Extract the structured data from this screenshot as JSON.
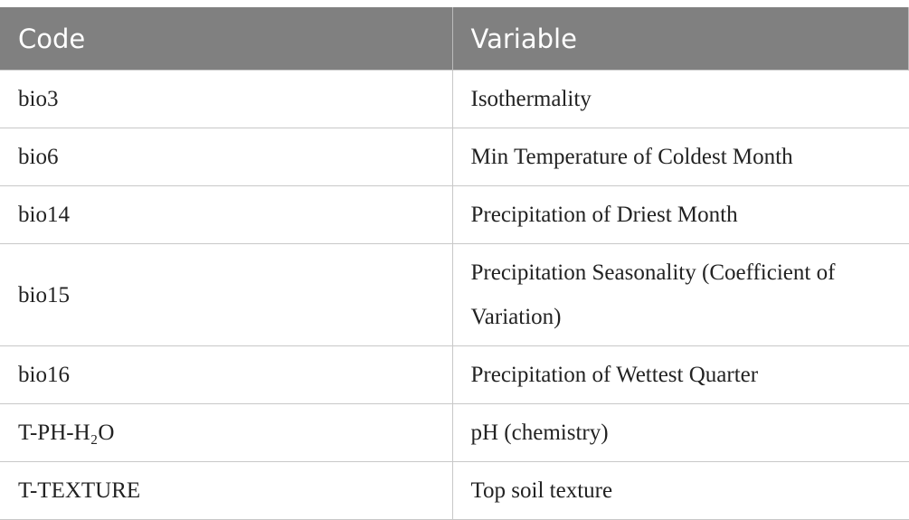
{
  "table": {
    "headers": [
      "Code",
      "Variable"
    ],
    "rows": [
      [
        "bio3",
        "Isothermality"
      ],
      [
        "bio6",
        "Min Temperature of Coldest Month"
      ],
      [
        "bio14",
        "Precipitation of Driest Month"
      ],
      [
        "bio15",
        "Precipitation Seasonality (Coefficient of Variation)"
      ],
      [
        "bio16",
        "Precipitation of Wettest Quarter"
      ],
      [
        "T-PH-H₂O",
        "pH (chemistry)"
      ],
      [
        "T-TEXTURE",
        "Top soil texture"
      ]
    ]
  }
}
